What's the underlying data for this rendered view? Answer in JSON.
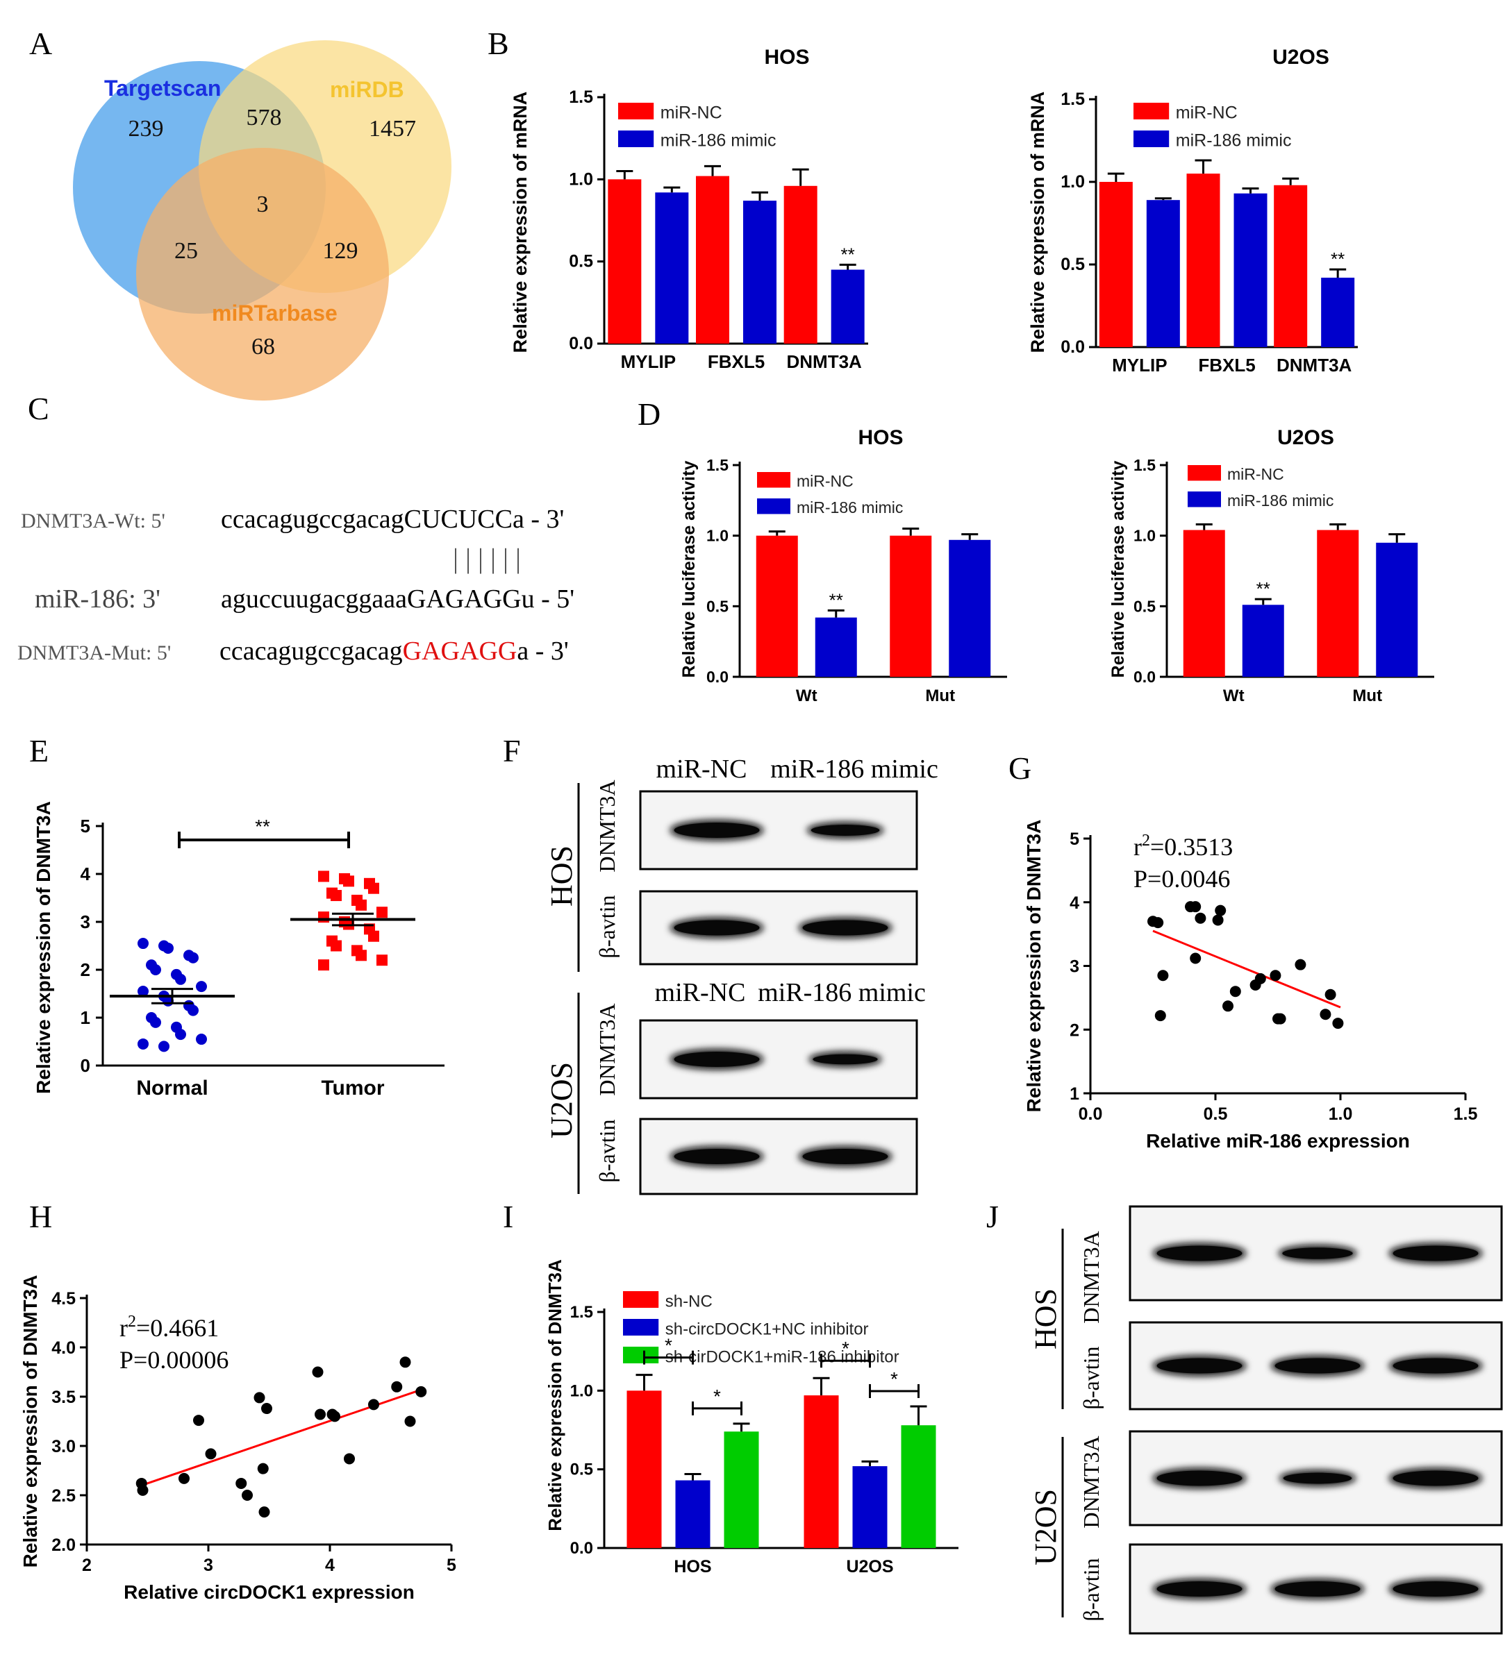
{
  "panel_letters": {
    "A": "A",
    "B": "B",
    "C": "C",
    "D": "D",
    "E": "E",
    "F": "F",
    "G": "G",
    "H": "H",
    "I": "I",
    "J": "J"
  },
  "venn": {
    "sets": [
      {
        "name": "Targetscan",
        "color": "#1a2fe0",
        "fill": "#6fb3ef"
      },
      {
        "name": "miRDB",
        "color": "#f4c430",
        "fill": "#f9d97e"
      },
      {
        "name": "miRTarbase",
        "color": "#f08a20",
        "fill": "#f6b06a"
      }
    ],
    "regions": {
      "t_only": "239",
      "d_only": "1457",
      "b_only": "68",
      "t_d": "578",
      "t_b": "25",
      "d_b": "129",
      "all": "3"
    }
  },
  "colors": {
    "red": "#ff0000",
    "blue": "#0000cc",
    "green": "#00cc00",
    "black": "#000000",
    "gray": "#444444"
  },
  "chart_data": [
    {
      "id": "B_HOS",
      "type": "bar",
      "title": "HOS",
      "ylabel": "Relative expression of mRNA",
      "ylim": [
        0,
        1.5
      ],
      "yticks": [
        "0.0",
        "0.5",
        "1.0",
        "1.5"
      ],
      "categories": [
        "MYLIP",
        "FBXL5",
        "DNMT3A"
      ],
      "series": [
        {
          "name": "miR-NC",
          "values": [
            1.0,
            1.02,
            0.96
          ],
          "errors": [
            0.05,
            0.06,
            0.1
          ]
        },
        {
          "name": "miR-186 mimic",
          "values": [
            0.92,
            0.87,
            0.45
          ],
          "errors": [
            0.03,
            0.05,
            0.03
          ]
        }
      ],
      "annotations": [
        {
          "category": 2,
          "series": 1,
          "text": "**"
        }
      ]
    },
    {
      "id": "B_U2OS",
      "type": "bar",
      "title": "U2OS",
      "ylabel": "Relative expression of mRNA",
      "ylim": [
        0,
        1.5
      ],
      "yticks": [
        "0.0",
        "0.5",
        "1.0",
        "1.5"
      ],
      "categories": [
        "MYLIP",
        "FBXL5",
        "DNMT3A"
      ],
      "series": [
        {
          "name": "miR-NC",
          "values": [
            1.0,
            1.05,
            0.98
          ],
          "errors": [
            0.05,
            0.08,
            0.04
          ]
        },
        {
          "name": "miR-186 mimic",
          "values": [
            0.89,
            0.93,
            0.42
          ],
          "errors": [
            0.01,
            0.03,
            0.05
          ]
        }
      ],
      "annotations": [
        {
          "category": 2,
          "series": 1,
          "text": "**"
        }
      ]
    },
    {
      "id": "D_HOS",
      "type": "bar",
      "title": "HOS",
      "ylabel": "Relative luciferase activity",
      "ylim": [
        0,
        1.5
      ],
      "yticks": [
        "0.0",
        "0.5",
        "1.0",
        "1.5"
      ],
      "categories": [
        "Wt",
        "Mut"
      ],
      "series": [
        {
          "name": "miR-NC",
          "values": [
            1.0,
            1.0
          ],
          "errors": [
            0.03,
            0.05
          ]
        },
        {
          "name": "miR-186 mimic",
          "values": [
            0.42,
            0.97
          ],
          "errors": [
            0.05,
            0.04
          ]
        }
      ],
      "annotations": [
        {
          "category": 0,
          "series": 1,
          "text": "**"
        }
      ]
    },
    {
      "id": "D_U2OS",
      "type": "bar",
      "title": "U2OS",
      "ylabel": "Relative luciferase activity",
      "ylim": [
        0,
        1.5
      ],
      "yticks": [
        "0.0",
        "0.5",
        "1.0",
        "1.5"
      ],
      "categories": [
        "Wt",
        "Mut"
      ],
      "series": [
        {
          "name": "miR-NC",
          "values": [
            1.04,
            1.04
          ],
          "errors": [
            0.04,
            0.04
          ]
        },
        {
          "name": "miR-186 mimic",
          "values": [
            0.51,
            0.95
          ],
          "errors": [
            0.04,
            0.06
          ]
        }
      ],
      "annotations": [
        {
          "category": 0,
          "series": 1,
          "text": "**"
        }
      ]
    },
    {
      "id": "E",
      "type": "scatter",
      "ylabel": "Relative expression of DNMT3A",
      "ylim": [
        0,
        5
      ],
      "yticks": [
        "0",
        "1",
        "2",
        "3",
        "4",
        "5"
      ],
      "categories": [
        "Normal",
        "Tumor"
      ],
      "groups": [
        {
          "name": "Normal",
          "mean": 1.45,
          "sem": 0.15,
          "values": [
            2.55,
            2.5,
            2.45,
            2.3,
            2.25,
            2.1,
            2.0,
            1.9,
            1.8,
            1.65,
            1.55,
            1.45,
            1.35,
            1.25,
            1.15,
            1.0,
            0.9,
            0.8,
            0.65,
            0.55,
            0.45,
            0.4
          ]
        },
        {
          "name": "Tumor",
          "mean": 3.05,
          "sem": 0.12,
          "values": [
            3.95,
            3.9,
            3.85,
            3.8,
            3.7,
            3.6,
            3.55,
            3.45,
            3.35,
            3.2,
            3.1,
            3.0,
            2.95,
            2.85,
            2.7,
            2.6,
            2.5,
            2.4,
            2.3,
            2.2,
            2.1
          ]
        }
      ],
      "annotations": [
        {
          "text": "**"
        }
      ]
    },
    {
      "id": "G",
      "type": "scatter",
      "xlabel": "Relative miR-186 expression",
      "ylabel": "Relative expression of DNMT3A",
      "xlim": [
        0,
        1.5
      ],
      "ylim": [
        1,
        5
      ],
      "xticks": [
        "0.0",
        "0.5",
        "1.0",
        "1.5"
      ],
      "yticks": [
        "1",
        "2",
        "3",
        "4",
        "5"
      ],
      "stats": [
        "r",
        "2",
        "=0.3513",
        "P=0.0046"
      ],
      "points": [
        [
          0.25,
          3.7
        ],
        [
          0.27,
          3.68
        ],
        [
          0.29,
          2.85
        ],
        [
          0.28,
          2.22
        ],
        [
          0.4,
          3.93
        ],
        [
          0.42,
          3.93
        ],
        [
          0.44,
          3.75
        ],
        [
          0.42,
          3.12
        ],
        [
          0.51,
          3.72
        ],
        [
          0.52,
          3.87
        ],
        [
          0.55,
          2.37
        ],
        [
          0.58,
          2.6
        ],
        [
          0.66,
          2.7
        ],
        [
          0.68,
          2.8
        ],
        [
          0.74,
          2.85
        ],
        [
          0.75,
          2.17
        ],
        [
          0.76,
          2.17
        ],
        [
          0.84,
          3.02
        ],
        [
          0.94,
          2.24
        ],
        [
          0.96,
          2.55
        ],
        [
          0.99,
          2.1
        ]
      ],
      "fit": [
        [
          0.25,
          3.55
        ],
        [
          1.0,
          2.35
        ]
      ]
    },
    {
      "id": "H",
      "type": "scatter",
      "xlabel": "Relative circDOCK1 expression",
      "ylabel": "Relative expression of DNMT3A",
      "xlim": [
        2,
        5
      ],
      "ylim": [
        2.0,
        4.5
      ],
      "xticks": [
        "2",
        "3",
        "4",
        "5"
      ],
      "yticks": [
        "2.0",
        "2.5",
        "3.0",
        "3.5",
        "4.0",
        "4.5"
      ],
      "stats": [
        "r",
        "2",
        "=0.4661",
        "P=0.00006"
      ],
      "points": [
        [
          2.45,
          2.62
        ],
        [
          2.46,
          2.55
        ],
        [
          2.8,
          2.67
        ],
        [
          2.92,
          3.26
        ],
        [
          3.02,
          2.92
        ],
        [
          3.27,
          2.62
        ],
        [
          3.32,
          2.5
        ],
        [
          3.42,
          3.49
        ],
        [
          3.45,
          2.77
        ],
        [
          3.48,
          3.38
        ],
        [
          3.46,
          2.33
        ],
        [
          3.9,
          3.75
        ],
        [
          3.92,
          3.32
        ],
        [
          4.02,
          3.32
        ],
        [
          4.04,
          3.3
        ],
        [
          4.16,
          2.87
        ],
        [
          4.36,
          3.42
        ],
        [
          4.55,
          3.6
        ],
        [
          4.62,
          3.85
        ],
        [
          4.66,
          3.25
        ],
        [
          4.75,
          3.55
        ]
      ],
      "fit": [
        [
          2.45,
          2.6
        ],
        [
          4.75,
          3.57
        ]
      ]
    },
    {
      "id": "I",
      "type": "bar",
      "ylabel": "Relative expression of DNMT3A",
      "ylim": [
        0,
        1.5
      ],
      "yticks": [
        "0.0",
        "0.5",
        "1.0",
        "1.5"
      ],
      "categories": [
        "HOS",
        "U2OS"
      ],
      "series": [
        {
          "name": "sh-NC",
          "values": [
            1.0,
            0.97
          ],
          "errors": [
            0.1,
            0.11
          ]
        },
        {
          "name": "sh-circDOCK1+NC inhibitor",
          "values": [
            0.43,
            0.52
          ],
          "errors": [
            0.04,
            0.03
          ]
        },
        {
          "name": "sh-cirDOCK1+miR-186 inhibitor",
          "values": [
            0.74,
            0.78
          ],
          "errors": [
            0.05,
            0.12
          ]
        }
      ],
      "annotations": [
        {
          "text": "*"
        },
        {
          "text": "*"
        },
        {
          "text": "*"
        },
        {
          "text": "*"
        }
      ]
    }
  ],
  "panel_c": {
    "wt_label": "DNMT3A-Wt: 5'",
    "wt_seq_pre": "ccacagugccgacag",
    "wt_seq_site": "CUCUCC",
    "wt_seq_post": "a - 3'",
    "pair_marks": "|  |  |  |  |  |",
    "mir_label": "miR-186: 3'",
    "mir_seq_pre": "aguccuugacggaaa",
    "mir_seq_site": "GAGAGG",
    "mir_seq_post": "u - 5'",
    "mut_label": "DNMT3A-Mut: 5'",
    "mut_seq_pre": "ccacagugccgacag",
    "mut_seq_site": "GAGAGG",
    "mut_seq_post": "a - 3'"
  },
  "panel_f": {
    "col_nc": "miR-NC",
    "col_mimic": "miR-186 mimic",
    "cell_hos": "HOS",
    "cell_u2os": "U2OS",
    "prot_target": "DNMT3A",
    "prot_ref": "β-avtin",
    "band_levels": {
      "hos_dnmt3a": [
        1.0,
        0.55
      ],
      "hos_actin": [
        1.0,
        1.0
      ],
      "u2os_dnmt3a": [
        1.0,
        0.45
      ],
      "u2os_actin": [
        1.0,
        1.0
      ]
    }
  },
  "panel_j": {
    "cell_hos": "HOS",
    "cell_u2os": "U2OS",
    "prot_target": "DNMT3A",
    "prot_ref": "β-avtin",
    "band_levels": {
      "hos_dnmt3a": [
        1.0,
        0.6,
        1.0
      ],
      "hos_actin": [
        1.0,
        1.0,
        1.0
      ],
      "u2os_dnmt3a": [
        1.0,
        0.55,
        1.0
      ],
      "u2os_actin": [
        1.0,
        1.0,
        1.0
      ]
    }
  }
}
